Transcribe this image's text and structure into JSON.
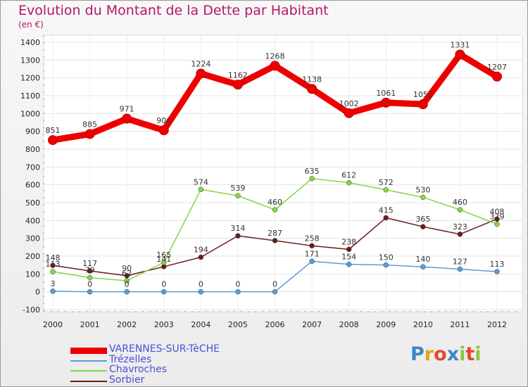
{
  "chart_data": {
    "type": "line",
    "title": "Evolution du Montant de la Dette par Habitant",
    "subtitle": "(en €)",
    "x": [
      "2000",
      "2001",
      "2002",
      "2003",
      "2004",
      "2005",
      "2006",
      "2007",
      "2008",
      "2009",
      "2010",
      "2011",
      "2012"
    ],
    "ylim": [
      -100,
      1400
    ],
    "yticks": [
      -100,
      0,
      100,
      200,
      300,
      400,
      500,
      600,
      700,
      800,
      900,
      1000,
      1100,
      1200,
      1300,
      1400
    ],
    "grid": true,
    "legend_position": "bottom-left",
    "series": [
      {
        "name": "Sorbier",
        "color": "#6b1b1b",
        "values": [
          148,
          117,
          90,
          141,
          194,
          314,
          287,
          258,
          238,
          415,
          365,
          323,
          408
        ],
        "labels": [
          "148",
          "117",
          "90",
          "141",
          "194",
          "314",
          "287",
          "258",
          "238",
          "415",
          "365",
          "323",
          "408"
        ]
      },
      {
        "name": "Chavroches",
        "color": "#86d44a",
        "values": [
          113,
          79,
          62,
          165,
          574,
          539,
          460,
          635,
          612,
          572,
          530,
          460,
          379
        ],
        "labels": [
          "113",
          "79",
          "62",
          "165",
          "574",
          "539",
          "460",
          "635",
          "612",
          "572",
          "530",
          "460",
          "379"
        ]
      },
      {
        "name": "Trézelles",
        "color": "#5b9bd5",
        "values": [
          3,
          0,
          0,
          0,
          0,
          0,
          0,
          171,
          154,
          150,
          140,
          127,
          113
        ],
        "labels": [
          "3",
          "0",
          "0",
          "0",
          "0",
          "0",
          "0",
          "171",
          "154",
          "150",
          "140",
          "127",
          "113"
        ]
      },
      {
        "name": "VARENNES-SUR-TèCHE",
        "color": "#ee0000",
        "values": [
          851,
          885,
          971,
          906,
          1224,
          1162,
          1268,
          1138,
          1002,
          1061,
          1052,
          1331,
          1207
        ],
        "labels": [
          "851",
          "885",
          "971",
          "906",
          "1224",
          "1162",
          "1268",
          "1138",
          "1002",
          "1061",
          "1052",
          "1331",
          "1207"
        ]
      }
    ]
  },
  "legend_order": [
    "VARENNES-SUR-TèCHE",
    "Trézelles",
    "Chavroches",
    "Sorbier"
  ],
  "logo": {
    "text": "Proxiti",
    "letters": [
      "P",
      "r",
      "o",
      "x",
      "i",
      "t",
      "i"
    ],
    "colors": [
      "#3a86c8",
      "#e7a21b",
      "#e04b2b",
      "#3a86c8",
      "#8cc63f",
      "#e04b2b",
      "#8cc63f"
    ]
  }
}
